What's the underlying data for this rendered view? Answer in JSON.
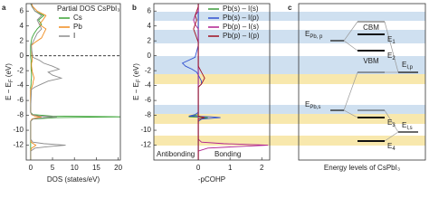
{
  "chart_data": [
    {
      "type": "line",
      "panel_label": "a",
      "x_label": "DOS (states/eV)",
      "y_label": {
        "text": "E − E",
        "sub": "F",
        "tail": " (eV)"
      },
      "y": [
        -14,
        -12.8,
        -12.4,
        -12.2,
        -12.0,
        -11.8,
        -11.6,
        -11.2,
        -9.5,
        -8.8,
        -8.5,
        -8.3,
        -8.2,
        -8.1,
        -7.9,
        -7.6,
        -7.0,
        -4.5,
        -4.2,
        -3.8,
        -3.4,
        -3.0,
        -2.6,
        -2.2,
        -1.8,
        -1.4,
        -1.0,
        -0.6,
        -0.2,
        1.4,
        1.8,
        2.4,
        3.0,
        3.6,
        4.2,
        4.8,
        5.4,
        6.0,
        6.6,
        7
      ],
      "series": [
        {
          "name": "Cs",
          "color": "#3aa335",
          "values": [
            0,
            0,
            0,
            0,
            0,
            0,
            0,
            0,
            0,
            0,
            0.5,
            6,
            22,
            5,
            0.5,
            0,
            0,
            0,
            0,
            0.1,
            0.1,
            0.2,
            0.2,
            0.2,
            0.1,
            0.1,
            0.1,
            0.1,
            0,
            0,
            0.1,
            0.3,
            0.8,
            1.5,
            2.5,
            1.8,
            3,
            1,
            0.3,
            0
          ]
        },
        {
          "name": "Pb",
          "color": "#f08c1e",
          "values": [
            0,
            0,
            0.2,
            0.8,
            1.2,
            0.6,
            0.1,
            0,
            0,
            0,
            0.3,
            1.5,
            2.5,
            1,
            0.2,
            0,
            0,
            0,
            0.3,
            0.5,
            0.6,
            0.8,
            0.6,
            0.4,
            0.3,
            0.2,
            0.2,
            0.4,
            0.3,
            0.2,
            1,
            2.5,
            3,
            3.5,
            2,
            2.8,
            3.5,
            1.5,
            0.5,
            0.2
          ]
        },
        {
          "name": "I",
          "color": "#8c8c8c",
          "values": [
            0,
            0,
            1,
            4,
            8,
            3,
            0.5,
            0,
            0,
            0,
            0.5,
            3,
            6,
            2,
            0.3,
            0,
            0,
            0.2,
            1,
            2.5,
            4,
            7,
            5,
            4,
            6.5,
            5,
            3,
            2,
            0.5,
            0.1,
            0.5,
            1,
            1.5,
            2.5,
            2,
            1.5,
            2.5,
            1,
            0.3,
            0.1
          ]
        }
      ],
      "xlim": [
        -1,
        20.5
      ],
      "xticks": [
        0,
        5,
        10,
        15,
        20
      ],
      "ylim": [
        -14,
        7
      ],
      "yticks": [
        -12,
        -10,
        -8,
        -6,
        -4,
        -2,
        0,
        2,
        4,
        6
      ],
      "zero_line": "horizontal",
      "legend": {
        "title": "Partial DOS CsPbI₃",
        "position": "upper right"
      }
    },
    {
      "type": "line",
      "panel_label": "b",
      "x_label": "-pCOHP",
      "y_label": {
        "text": "E − E",
        "sub": "F",
        "tail": " (eV)"
      },
      "y": [
        -14,
        -12.8,
        -12.4,
        -12.2,
        -12.0,
        -11.8,
        -11.6,
        -11.2,
        -9.5,
        -8.8,
        -8.5,
        -8.3,
        -8.2,
        -8.1,
        -7.9,
        -7.6,
        -7.0,
        -4.5,
        -4.2,
        -3.8,
        -3.4,
        -3.0,
        -2.6,
        -2.2,
        -1.8,
        -1.4,
        -1.0,
        -0.6,
        -0.2,
        1.4,
        1.8,
        2.4,
        3.0,
        3.6,
        4.2,
        4.8,
        5.4,
        6.0,
        6.6,
        7
      ],
      "series": [
        {
          "name": "Pb(s) – I(s)",
          "color": "#3a9a3a",
          "values": [
            0,
            0,
            0,
            0,
            0,
            0,
            0,
            0,
            0,
            0,
            0.1,
            0.3,
            -0.3,
            -0.2,
            0,
            0,
            0,
            0,
            0,
            0,
            0,
            0,
            0,
            0,
            0,
            0,
            0,
            0,
            0,
            0,
            0,
            0,
            0,
            0,
            0,
            0,
            0,
            0,
            0,
            0
          ]
        },
        {
          "name": "Pb(s) – I(p)",
          "color": "#3050d0",
          "values": [
            0,
            0,
            0,
            0,
            0,
            0,
            0,
            0,
            0,
            0,
            0.1,
            0.7,
            0.4,
            -0.3,
            -0.1,
            0,
            0,
            0,
            0,
            0.1,
            0.1,
            0.05,
            0,
            -0.05,
            -0.2,
            -0.4,
            -0.5,
            -0.3,
            -0.1,
            0,
            0,
            0,
            0,
            0,
            0,
            0,
            0,
            0,
            0,
            0
          ]
        },
        {
          "name": "Pb(p) – I(s)",
          "color": "#b0208f",
          "values": [
            0,
            0,
            0.3,
            1.2,
            2.2,
            0.8,
            0.1,
            0,
            0,
            0,
            0,
            0,
            0,
            0,
            0,
            0,
            0,
            0,
            0,
            0,
            0,
            0,
            0,
            0,
            0,
            0,
            0,
            0,
            0,
            0,
            0,
            0,
            0,
            0,
            -0.1,
            -0.15,
            -0.1,
            0,
            0,
            0
          ]
        },
        {
          "name": "Pb(p) – I(p)",
          "color": "#a01020",
          "values": [
            0,
            0,
            0,
            0,
            0,
            0,
            0,
            0,
            0,
            0,
            0,
            0.2,
            0.1,
            0,
            0,
            0,
            0,
            0,
            0,
            0.1,
            0.15,
            0.2,
            0.15,
            0.1,
            0.05,
            0,
            0,
            0,
            0,
            0,
            0,
            -0.05,
            -0.1,
            -0.15,
            -0.1,
            -0.05,
            -0.1,
            -0.05,
            0,
            0
          ]
        }
      ],
      "xlim": [
        -1.4,
        2.25
      ],
      "xticks": [
        0,
        1,
        2
      ],
      "ylim": [
        -14,
        7
      ],
      "yticks": [
        -12,
        -10,
        -8,
        -6,
        -4,
        -2,
        0,
        2,
        4,
        6
      ],
      "zero_line": "vertical",
      "annotations": [
        {
          "text": "Antibonding",
          "color": "#4a7fd0"
        },
        {
          "text": "Bonding",
          "color": "#e8b820"
        }
      ],
      "legend": {
        "position": "upper right"
      }
    }
  ],
  "diagram": {
    "panel_label": "c",
    "title": "Energy levels of CsPbI₃",
    "labels": [
      {
        "text": "E",
        "sub": "Pb, p"
      },
      {
        "text": "E",
        "sub": "Pb,s"
      },
      {
        "text": "E",
        "sub": "I,p"
      },
      {
        "text": "E",
        "sub": "I,s"
      },
      {
        "text": "E",
        "sub": "1"
      },
      {
        "text": "E",
        "sub": "2"
      },
      {
        "text": "E",
        "sub": "3"
      },
      {
        "text": "E",
        "sub": "4"
      }
    ],
    "band_edges": [
      "CBM",
      "VBM"
    ]
  }
}
